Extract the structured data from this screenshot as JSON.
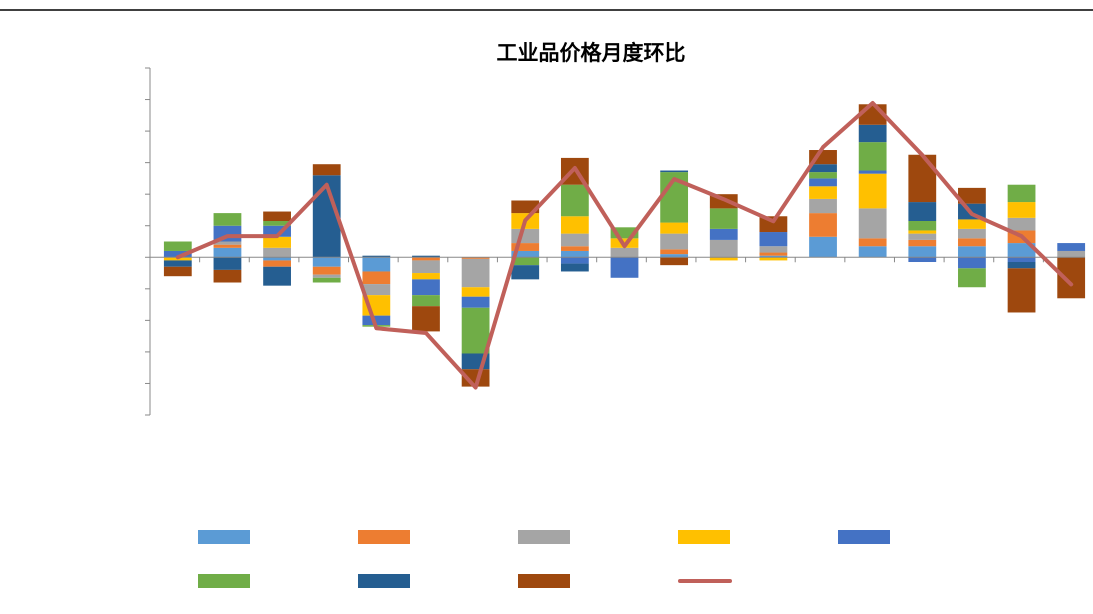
{
  "chart_data": {
    "type": "bar",
    "stacked": true,
    "title": "工业品价格月度环比",
    "categories": [
      null,
      null,
      null,
      null,
      null,
      null,
      null,
      null,
      null,
      null,
      null,
      null,
      null,
      null,
      null,
      null,
      null,
      null,
      null
    ],
    "ylim": [
      -5,
      6
    ],
    "yticks": [
      -5,
      -4,
      -3,
      -2,
      -1,
      0,
      1,
      2,
      3,
      4,
      5,
      6
    ],
    "series": [
      {
        "color": "#5b9bd5",
        "values": [
          0,
          0.3,
          -0.1,
          -0.3,
          -0.45,
          0,
          0,
          0.2,
          0.2,
          0,
          0.1,
          0,
          0.05,
          0.65,
          0.35,
          0.35,
          0.35,
          0.45,
          0
        ]
      },
      {
        "color": "#ed7d31",
        "values": [
          0,
          0.1,
          -0.2,
          -0.25,
          -0.4,
          -0.1,
          -0.05,
          0.25,
          0.15,
          0,
          0.15,
          0,
          0.1,
          0.75,
          0.25,
          0.2,
          0.25,
          0.4,
          0
        ]
      },
      {
        "color": "#a5a5a5",
        "values": [
          0,
          0.1,
          0.3,
          -0.1,
          -0.35,
          -0.4,
          -0.9,
          0.45,
          0.4,
          0.3,
          0.5,
          0.55,
          0.2,
          0.45,
          0.95,
          0.2,
          0.3,
          0.4,
          0.2
        ]
      },
      {
        "color": "#ffc000",
        "values": [
          -0.1,
          0,
          0.35,
          0,
          -0.65,
          -0.2,
          -0.3,
          0.5,
          0.55,
          0.3,
          0.35,
          -0.1,
          -0.1,
          0.4,
          1.1,
          0.1,
          0.3,
          0.5,
          0
        ]
      },
      {
        "color": "#4472c4",
        "values": [
          0.2,
          0.5,
          0.35,
          0,
          -0.3,
          -0.5,
          -0.35,
          0,
          -0.2,
          -0.65,
          0,
          0.35,
          0.45,
          0.25,
          0.1,
          -0.15,
          -0.35,
          -0.15,
          0.25
        ]
      },
      {
        "color": "#70ad47",
        "values": [
          0.3,
          0.4,
          0.15,
          -0.15,
          -0.05,
          -0.35,
          -1.45,
          -0.25,
          1.0,
          0.35,
          1.6,
          0.65,
          0,
          0.2,
          0.9,
          0.3,
          -0.6,
          0.55,
          0
        ]
      },
      {
        "color": "#255e91",
        "values": [
          -0.2,
          -0.4,
          -0.6,
          2.6,
          0.05,
          0.05,
          -0.5,
          -0.45,
          -0.25,
          0,
          0.05,
          0,
          0,
          0.25,
          0.55,
          0.6,
          0.5,
          -0.2,
          0
        ]
      },
      {
        "color": "#9e480e",
        "values": [
          -0.3,
          -0.4,
          0.3,
          0.35,
          0,
          -0.8,
          -0.55,
          0.4,
          0.85,
          0,
          -0.25,
          0.45,
          0.5,
          0.45,
          0.65,
          1.5,
          0.5,
          -1.4,
          -1.3
        ]
      }
    ],
    "line": {
      "color": "#c0605a",
      "values": [
        0,
        0.67,
        0.67,
        2.3,
        -2.25,
        -2.4,
        -4.13,
        1.17,
        2.83,
        0.35,
        2.48,
        1.84,
        1.14,
        3.49,
        4.89,
        3.24,
        1.37,
        0.67,
        -0.86
      ]
    }
  }
}
